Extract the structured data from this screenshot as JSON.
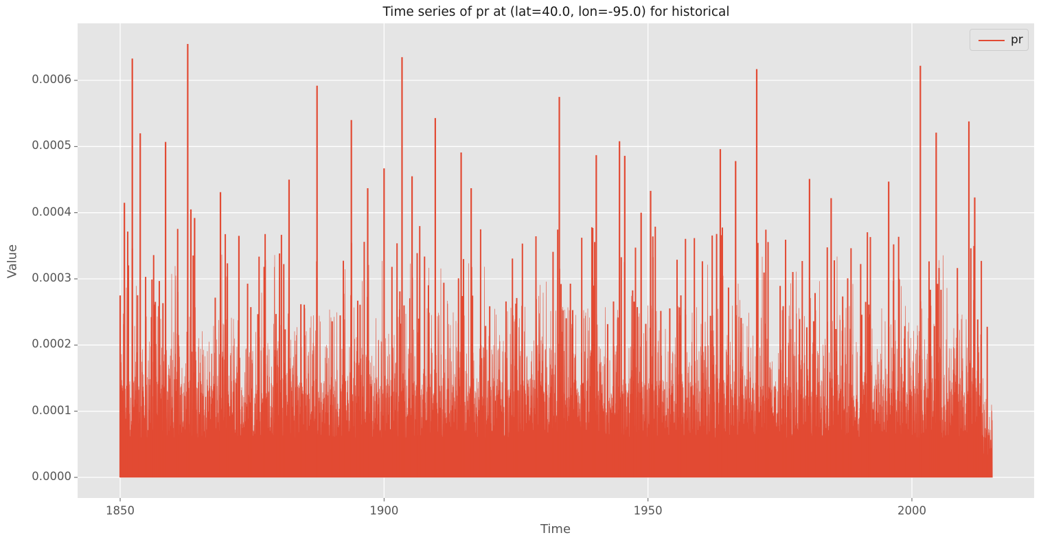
{
  "chart_data": {
    "type": "line",
    "title": "Time series of pr at (lat=40.0, lon=-95.0) for historical",
    "xlabel": "Time",
    "ylabel": "Value",
    "xlim": [
      1842,
      2023
    ],
    "ylim": [
      -3.15e-05,
      0.0006855
    ],
    "x_ticks": [
      1850,
      1900,
      1950,
      2000
    ],
    "x_tick_labels": [
      "1850",
      "1900",
      "1950",
      "2000"
    ],
    "y_ticks": [
      0.0,
      0.0001,
      0.0002,
      0.0003,
      0.0004,
      0.0005,
      0.0006
    ],
    "y_tick_labels": [
      "0.0000",
      "0.0001",
      "0.0002",
      "0.0003",
      "0.0004",
      "0.0005",
      "0.0006"
    ],
    "grid": true,
    "legend_position": "upper right",
    "x_range_of_data": [
      1850,
      2015
    ],
    "series": [
      {
        "name": "pr",
        "color": "#e24a33",
        "description": "Daily precipitation flux, dense spiky series from 1850 to 2015; baseline 0, most values below ~0.00015, frequent spikes 0.0002-0.0004",
        "notable_peaks": {
          "x": [
            1850.0,
            1850.8,
            1852.3,
            1853.8,
            1858.6,
            1862.8,
            1863.4,
            1864.1,
            1869.0,
            1872.5,
            1882.0,
            1887.3,
            1893.8,
            1896.9,
            1900.0,
            1903.4,
            1905.3,
            1909.7,
            1914.6,
            1916.5,
            1933.2,
            1940.2,
            1944.6,
            1945.6,
            1948.7,
            1950.5,
            1963.7,
            1966.6,
            1970.6,
            1980.6,
            1984.7,
            1995.6,
            2001.6,
            2004.6,
            2010.8,
            2011.9
          ],
          "y": [
            0.000275,
            0.000415,
            0.000633,
            0.00052,
            0.000507,
            0.000655,
            0.000405,
            0.000392,
            0.000431,
            0.000365,
            0.00045,
            0.000592,
            0.00054,
            0.000437,
            0.000467,
            0.000635,
            0.000455,
            0.000543,
            0.000491,
            0.000437,
            0.000575,
            0.000487,
            0.000508,
            0.000486,
            0.0004,
            0.000433,
            0.000496,
            0.000478,
            0.000617,
            0.000451,
            0.000422,
            0.000447,
            0.000622,
            0.000521,
            0.000538,
            0.000423
          ]
        }
      }
    ]
  },
  "legend": {
    "label": "pr"
  }
}
